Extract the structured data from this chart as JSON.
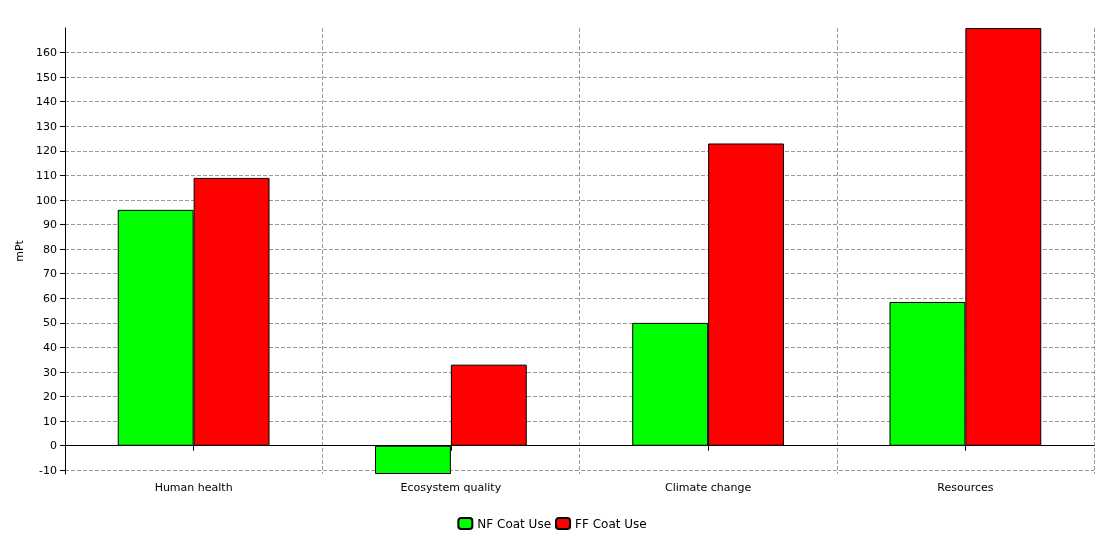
{
  "chart_data": {
    "type": "bar",
    "ylabel": "mPt",
    "categories": [
      "Human health",
      "Ecosystem quality",
      "Climate change",
      "Resources"
    ],
    "series": [
      {
        "name": "NF Coat Use",
        "color": "#00ff00",
        "values": [
          96,
          -11.5,
          50,
          58.5
        ]
      },
      {
        "name": "FF Coat Use",
        "color": "#ff0000",
        "values": [
          109,
          33,
          123,
          170
        ]
      }
    ],
    "ylim": [
      -11.5,
      170
    ],
    "yticks": [
      -10,
      0,
      10,
      20,
      30,
      40,
      50,
      60,
      70,
      80,
      90,
      100,
      110,
      120,
      130,
      140,
      150,
      160
    ],
    "grid": true,
    "legend": "bottom"
  }
}
